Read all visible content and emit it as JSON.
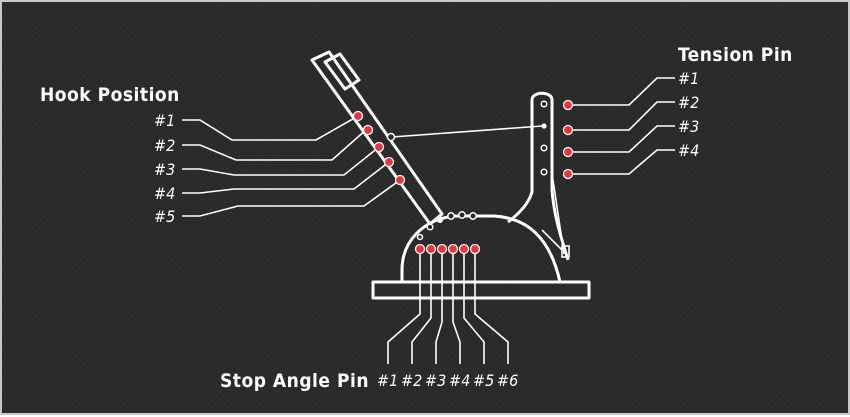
{
  "labels": {
    "hook_position": "Hook Position",
    "tension_pin": "Tension Pin",
    "stop_angle_pin": "Stop Angle Pin"
  },
  "hook_positions": [
    "#1",
    "#2",
    "#3",
    "#4",
    "#5"
  ],
  "tension_pins": [
    "#1",
    "#2",
    "#3",
    "#4"
  ],
  "stop_angle_pins": [
    "#1",
    "#2",
    "#3",
    "#4",
    "#5",
    "#6"
  ],
  "colors": {
    "background": "#2a2a2a",
    "stroke": "#ffffff",
    "pin": "#e8343b"
  }
}
